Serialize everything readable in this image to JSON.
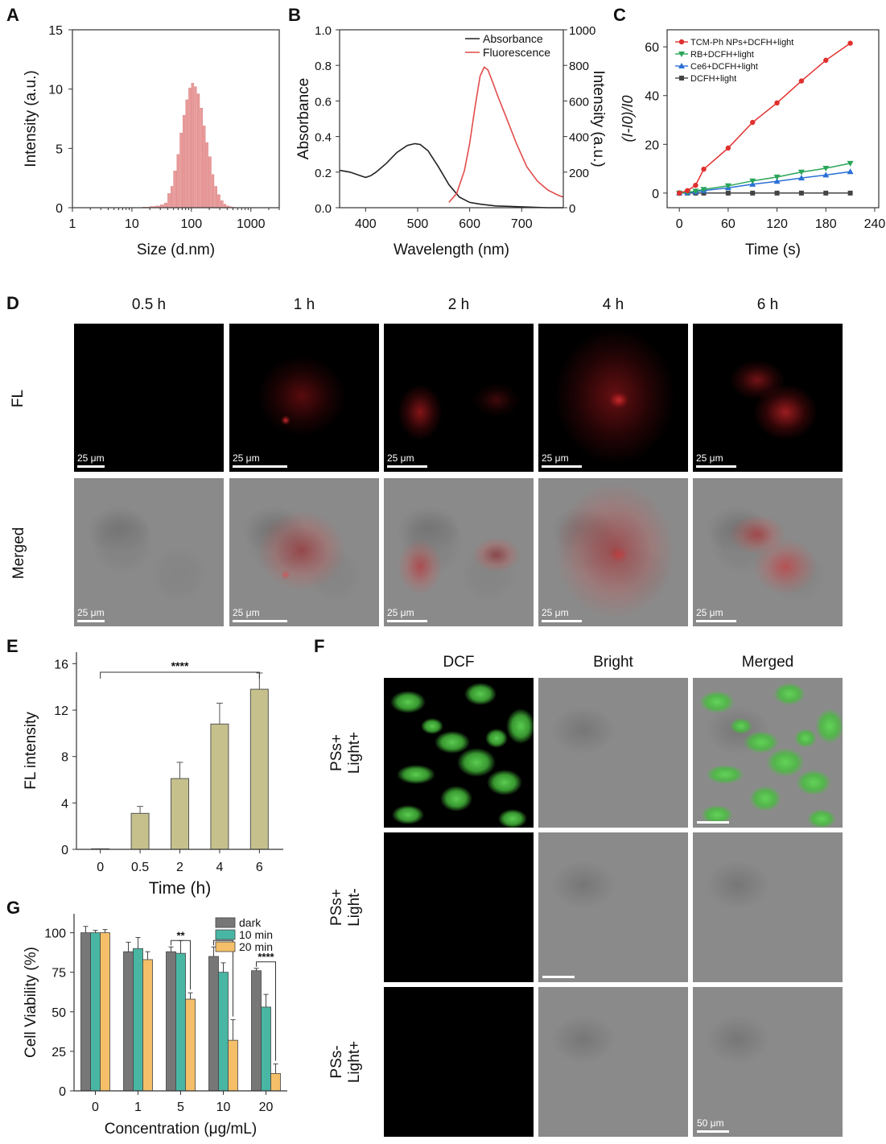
{
  "panel_letters": {
    "A": "A",
    "B": "B",
    "C": "C",
    "D": "D",
    "E": "E",
    "F": "F",
    "G": "G"
  },
  "colors": {
    "histogram": "#e99a9a",
    "absorbance": "#222222",
    "fluorescence": "#e24b4b",
    "red_fluor": "#e3202a",
    "green_fluor": "#46c43c",
    "bar_tan": "#c6c08c",
    "g_dark": "#777777",
    "g_10min": "#49b6a4",
    "g_20min": "#f4bf68"
  },
  "chart_data": [
    {
      "id": "A",
      "type": "bar",
      "xlabel": "Size (d.nm)",
      "ylabel": "Intensity (a.u.)",
      "xscale": "log",
      "xlim": [
        1,
        3000
      ],
      "ylim": [
        0,
        15
      ],
      "xticks": [
        "1",
        "10",
        "100",
        "1000"
      ],
      "yticks": [
        "0",
        "5",
        "10",
        "15"
      ],
      "x": [
        15,
        20,
        25,
        30,
        35,
        40,
        45,
        50,
        57,
        64,
        72,
        80,
        90,
        100,
        112,
        125,
        140,
        157,
        175,
        195,
        220,
        245,
        275,
        310,
        350,
        390,
        440,
        490
      ],
      "values": [
        0.05,
        0.1,
        0.15,
        0.25,
        0.4,
        1.2,
        1.8,
        3.1,
        4.5,
        6.3,
        7.8,
        9.1,
        10.1,
        10.5,
        10.2,
        9.6,
        8.4,
        6.9,
        5.5,
        4.3,
        2.8,
        1.8,
        1.1,
        0.6,
        0.3,
        0.15,
        0.08,
        0.04
      ]
    },
    {
      "id": "B",
      "type": "line",
      "xlabel": "Wavelength (nm)",
      "ylabel": "Absorbance",
      "y2label": "Intensity (a.u.)",
      "xlim": [
        350,
        780
      ],
      "ylim": [
        0,
        1.0
      ],
      "y2lim": [
        0,
        1000
      ],
      "xticks": [
        "400",
        "500",
        "600",
        "700"
      ],
      "yticks": [
        "0.0",
        "0.2",
        "0.4",
        "0.6",
        "0.8",
        "1.0"
      ],
      "y2ticks": [
        "0",
        "200",
        "400",
        "600",
        "800",
        "1000"
      ],
      "legend": [
        "Absorbance",
        "Fluorescence"
      ],
      "series": [
        {
          "name": "Absorbance",
          "axis": "left",
          "x": [
            350,
            370,
            390,
            400,
            410,
            420,
            440,
            460,
            480,
            495,
            505,
            520,
            540,
            560,
            580,
            600,
            620,
            650,
            700,
            750,
            780
          ],
          "y": [
            0.21,
            0.2,
            0.18,
            0.17,
            0.18,
            0.2,
            0.25,
            0.31,
            0.35,
            0.36,
            0.355,
            0.32,
            0.23,
            0.13,
            0.06,
            0.03,
            0.02,
            0.01,
            0.005,
            0.0,
            0.0
          ]
        },
        {
          "name": "Fluorescence",
          "axis": "right",
          "x": [
            560,
            575,
            590,
            600,
            610,
            620,
            628,
            635,
            645,
            655,
            670,
            690,
            710,
            730,
            750,
            770,
            780
          ],
          "y": [
            30,
            80,
            210,
            360,
            560,
            740,
            790,
            775,
            700,
            620,
            510,
            360,
            230,
            150,
            100,
            70,
            60
          ]
        }
      ]
    },
    {
      "id": "C",
      "type": "line",
      "xlabel": "Time (s)",
      "ylabel": "(I-I0)/I0",
      "xlim": [
        -15,
        245
      ],
      "ylim": [
        -6,
        67
      ],
      "xticks": [
        "0",
        "60",
        "120",
        "180",
        "240"
      ],
      "yticks": [
        "0",
        "20",
        "40",
        "60"
      ],
      "x": [
        0,
        10,
        20,
        30,
        60,
        90,
        120,
        150,
        180,
        210
      ],
      "series": [
        {
          "name": "TCM-Ph NPs+DCFH+light",
          "color": "#e0302e",
          "marker": "circle",
          "values": [
            0,
            1,
            3.2,
            9.8,
            18.5,
            29,
            37,
            46,
            54.5,
            61.5
          ]
        },
        {
          "name": "RB+DCFH+light",
          "color": "#2aa55a",
          "marker": "triangle-down",
          "values": [
            0,
            0.3,
            0.8,
            1.5,
            3,
            5,
            6.6,
            8.6,
            10.2,
            12.2
          ]
        },
        {
          "name": "Ce6+DCFH+light",
          "color": "#2a6fd6",
          "marker": "triangle-up",
          "values": [
            0,
            0.2,
            0.5,
            1.0,
            2.2,
            3.6,
            4.8,
            6.2,
            7.4,
            8.8
          ]
        },
        {
          "name": "DCFH+light",
          "color": "#444444",
          "marker": "square",
          "values": [
            0,
            0,
            0,
            0,
            0,
            0,
            0,
            0,
            0,
            0
          ]
        }
      ]
    },
    {
      "id": "E",
      "type": "bar",
      "xlabel": "Time (h)",
      "ylabel": "FL intensity",
      "ylim": [
        0,
        17
      ],
      "yticks": [
        "0",
        "4",
        "8",
        "12",
        "16"
      ],
      "categories": [
        "0",
        "0.5",
        "2",
        "4",
        "6"
      ],
      "values": [
        0.05,
        3.1,
        6.1,
        10.8,
        13.8
      ],
      "errors": [
        0.05,
        0.6,
        1.4,
        1.8,
        1.4
      ],
      "significance": {
        "label": "****",
        "from": "0",
        "to": "6"
      }
    },
    {
      "id": "G",
      "type": "bar",
      "xlabel": "Concentration (μg/mL)",
      "ylabel": "Cell Viability (%)",
      "ylim": [
        0,
        112
      ],
      "yticks": [
        "0",
        "25",
        "50",
        "75",
        "100"
      ],
      "categories": [
        "0",
        "1",
        "5",
        "10",
        "20"
      ],
      "legend": [
        "dark",
        "10 min",
        "20 min"
      ],
      "series": [
        {
          "name": "dark",
          "values": [
            100,
            88,
            88,
            85,
            76
          ],
          "errors": [
            4,
            6,
            3,
            6,
            1.5
          ]
        },
        {
          "name": "10 min",
          "values": [
            100,
            90,
            87,
            75,
            53
          ],
          "errors": [
            1.5,
            7,
            8,
            6,
            8
          ]
        },
        {
          "name": "20 min",
          "values": [
            100,
            83,
            58,
            32,
            11
          ],
          "errors": [
            2,
            5,
            4,
            13,
            6
          ]
        }
      ],
      "significance": [
        {
          "category": "5",
          "label": "**"
        },
        {
          "category": "10",
          "label": "**"
        },
        {
          "category": "20",
          "label": "****"
        }
      ]
    }
  ],
  "panelD": {
    "columns": [
      "0.5 h",
      "1 h",
      "2 h",
      "4 h",
      "6 h"
    ],
    "rows": [
      "FL",
      "Merged"
    ],
    "scalebar": "25 μm"
  },
  "panelF": {
    "columns": [
      "DCF",
      "Bright",
      "Merged"
    ],
    "rows": [
      {
        "line1": "PSs+",
        "line2": "Light+"
      },
      {
        "line1": "PSs+",
        "line2": "Light-"
      },
      {
        "line1": "PSs-",
        "line2": "Light+"
      }
    ],
    "scalebar": "50 μm"
  }
}
